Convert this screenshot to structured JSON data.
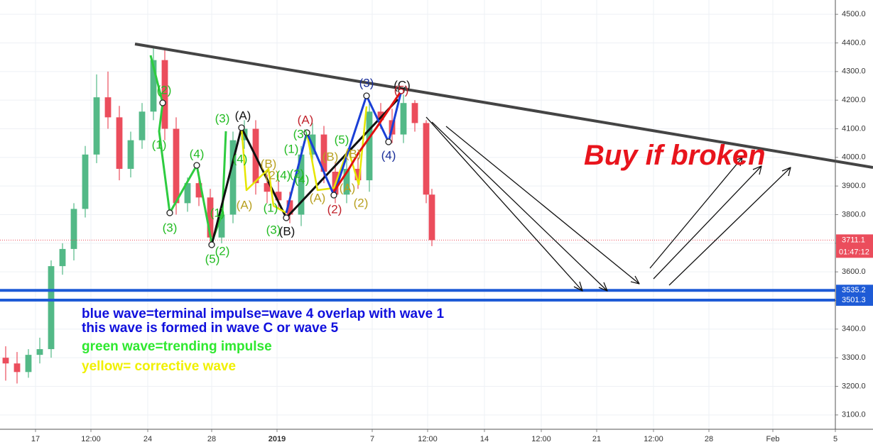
{
  "chart_data": {
    "type": "candlestick",
    "x": [
      2,
      6,
      10,
      14,
      18,
      22,
      26,
      30,
      34,
      38,
      42,
      46,
      50,
      54,
      58,
      62,
      66,
      70,
      74,
      78,
      82,
      86,
      90,
      94,
      98,
      102,
      106,
      110,
      114,
      118,
      122,
      126,
      130,
      134,
      138,
      142,
      146,
      150,
      152
    ],
    "open": [
      3300,
      3280,
      3250,
      3310,
      3330,
      3620,
      3680,
      3820,
      4010,
      4210,
      4140,
      3960,
      4060,
      4160,
      4340,
      4100,
      3840,
      3910,
      3860,
      3720,
      3800,
      4060,
      4100,
      3910,
      3880,
      3850,
      3800,
      4010,
      4080,
      3950,
      3870,
      3960,
      3920,
      4160,
      4130,
      4080,
      4190,
      4120,
      3870
    ],
    "high": [
      3340,
      3320,
      3330,
      3370,
      3640,
      3700,
      3840,
      4040,
      4290,
      4300,
      4180,
      4090,
      4190,
      4390,
      4380,
      4140,
      3930,
      3950,
      3890,
      3840,
      4090,
      4130,
      4130,
      3940,
      3920,
      3880,
      4040,
      4120,
      4110,
      3980,
      3990,
      4000,
      4190,
      4190,
      4170,
      4220,
      4200,
      4130,
      3890
    ],
    "low": [
      3220,
      3210,
      3230,
      3280,
      3300,
      3590,
      3640,
      3790,
      3980,
      4100,
      3920,
      3930,
      4030,
      4130,
      4060,
      3800,
      3810,
      3830,
      3690,
      3700,
      3770,
      4030,
      3870,
      3840,
      3820,
      3770,
      3760,
      3980,
      3910,
      3840,
      3840,
      3890,
      3880,
      4100,
      4050,
      4050,
      4090,
      3840,
      3690
    ],
    "close": [
      3280,
      3250,
      3310,
      3330,
      3620,
      3680,
      3820,
      4010,
      4210,
      4140,
      3960,
      4060,
      4160,
      4340,
      4100,
      3840,
      3910,
      3860,
      3720,
      3800,
      4060,
      4100,
      3910,
      3880,
      3850,
      3800,
      4010,
      4080,
      3950,
      3870,
      3960,
      3920,
      4160,
      4130,
      4080,
      4190,
      4120,
      3870,
      3711.1
    ],
    "up_color": "#53b987",
    "down_color": "#eb4d5c",
    "xlim": [
      0,
      294
    ],
    "xticks": [
      {
        "value": 12.5,
        "label": "17"
      },
      {
        "value": 32,
        "label": "12:00"
      },
      {
        "value": 52,
        "label": "24"
      },
      {
        "value": 74.5,
        "label": "28"
      },
      {
        "value": 97.5,
        "label": "2019"
      },
      {
        "value": 131,
        "label": "7"
      },
      {
        "value": 150.5,
        "label": "12:00"
      },
      {
        "value": 170.5,
        "label": "14"
      },
      {
        "value": 190.5,
        "label": "12:00"
      },
      {
        "value": 210,
        "label": "21"
      },
      {
        "value": 230,
        "label": "12:00"
      },
      {
        "value": 249.5,
        "label": "28"
      },
      {
        "value": 272,
        "label": "Feb"
      },
      {
        "value": 294,
        "label": "5"
      }
    ],
    "ylim": [
      3050,
      4550
    ],
    "yticks": [
      {
        "value": 3100,
        "label": "3100.0"
      },
      {
        "value": 3200,
        "label": "3200.0"
      },
      {
        "value": 3300,
        "label": "3300.0"
      },
      {
        "value": 3400,
        "label": "3400.0"
      },
      {
        "value": 3500,
        "label": "3500.0"
      },
      {
        "value": 3600,
        "label": "3600.0"
      },
      {
        "value": 3700,
        "label": "3700.0"
      },
      {
        "value": 3800,
        "label": "3800.0"
      },
      {
        "value": 3900,
        "label": "3900.0"
      },
      {
        "value": 4000,
        "label": "4000.0"
      },
      {
        "value": 4100,
        "label": "4100.0"
      },
      {
        "value": 4200,
        "label": "4200.0"
      },
      {
        "value": 4300,
        "label": "4300.0"
      },
      {
        "value": 4400,
        "label": "4400.0"
      },
      {
        "value": 4500,
        "label": "4500.0"
      }
    ],
    "grid": true,
    "support_lines": [
      3535.2,
      3501.3
    ],
    "support_color": "#1e5bd6",
    "last_price": 3711.1,
    "countdown": "01:47:12",
    "annotation": "Buy if  broken",
    "notes": [
      "blue wave=terminal impulse=wave 4 overlap with wave 1",
      "this wave is formed in wave C or wave 5",
      "green wave=trending impulse",
      "yellow= corrective wave"
    ],
    "wave_labels": [
      "(2)",
      "(1)",
      "(3)",
      "(4)",
      "(1)",
      "(2)",
      "(5)",
      "(3)",
      "(A)",
      "(4)",
      "(A)",
      "(B)",
      "(2)",
      "(4)",
      "(1)",
      "(3)",
      "(B)",
      "(1)",
      "(2)",
      "(4)",
      "(3)",
      "(A)",
      "(A)",
      "(B)",
      "(5)",
      "(A)",
      "(B)",
      "(2)",
      "(2)",
      "(3)",
      "(4)",
      "(C)",
      "(5)"
    ]
  }
}
